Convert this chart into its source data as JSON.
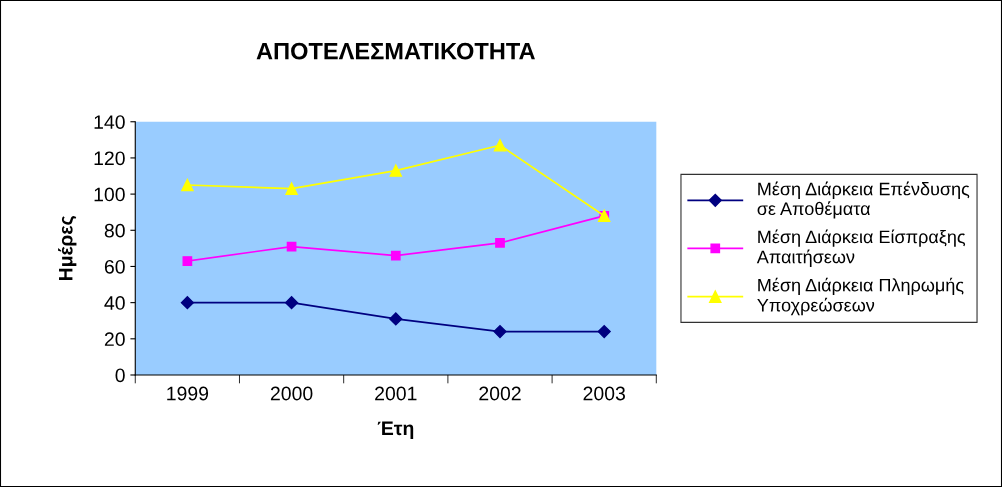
{
  "chart_data": {
    "type": "line",
    "title": "ΑΠΟΤΕΛΕΣΜΑΤΙΚΟΤΗΤΑ",
    "xlabel": "Έτη",
    "ylabel": "Ημέρες",
    "categories": [
      "1999",
      "2000",
      "2001",
      "2002",
      "2003"
    ],
    "series": [
      {
        "name": "Μέση Διάρκεια Επένδυσης\nσε Αποθέματα",
        "color": "#000080",
        "marker": "diamond",
        "values": [
          40,
          40,
          31,
          24,
          24
        ]
      },
      {
        "name": "Μέση Διάρκεια Είσπραξης\nΑπαιτήσεων",
        "color": "#ff00ff",
        "marker": "square",
        "values": [
          63,
          71,
          66,
          73,
          88
        ]
      },
      {
        "name": "Μέση Διάρκεια Πληρωμής\nΥποχρεώσεων",
        "color": "#ffff00",
        "marker": "triangle",
        "values": [
          105,
          103,
          113,
          127,
          88
        ]
      }
    ],
    "ylim": [
      0,
      140
    ],
    "yticks": [
      0,
      20,
      40,
      60,
      80,
      100,
      120,
      140
    ],
    "grid": false,
    "legend": "right"
  }
}
